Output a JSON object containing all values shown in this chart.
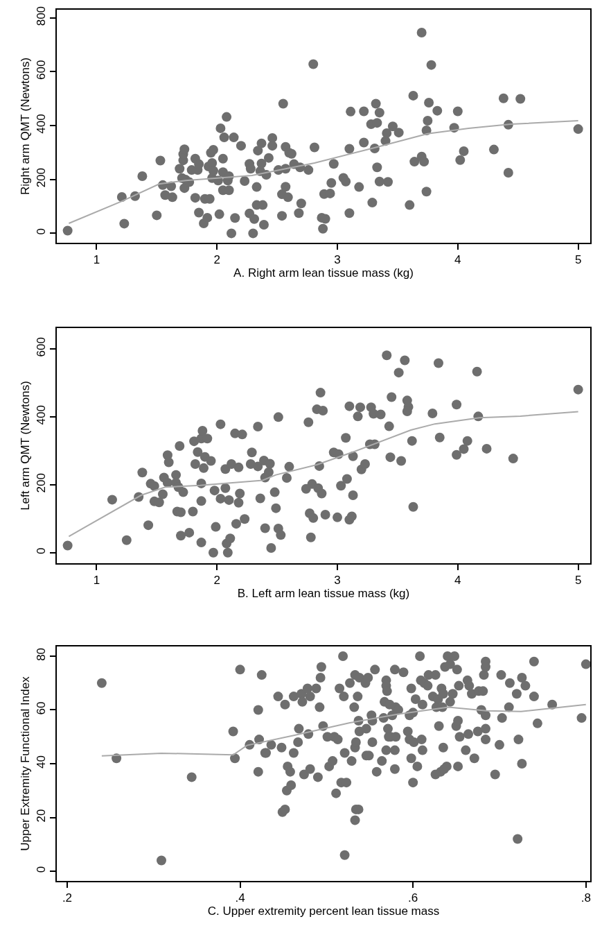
{
  "chart_data": [
    {
      "type": "scatter",
      "xlabel": "A. Right arm lean tissue mass (kg)",
      "ylabel": "Right arm QMT (Newtons)",
      "xlim": [
        0.67,
        5.1
      ],
      "ylim": [
        -35,
        830
      ],
      "xticks": [
        1,
        2,
        3,
        4,
        5
      ],
      "yticks": [
        0,
        200,
        400,
        600,
        800
      ],
      "marker": "circle",
      "series": [
        {
          "color": "#6e6e6e",
          "x": [
            0.76,
            1.21,
            1.32,
            1.23,
            1.38,
            1.5,
            1.53,
            1.55,
            1.57,
            1.62,
            1.63,
            1.69,
            1.71,
            1.72,
            1.72,
            1.73,
            1.73,
            1.74,
            1.77,
            1.79,
            1.82,
            1.82,
            1.84,
            1.85,
            1.85,
            1.89,
            1.9,
            1.92,
            1.94,
            1.93,
            1.95,
            1.96,
            1.96,
            1.97,
            1.97,
            2.01,
            2.02,
            2.03,
            2.05,
            2.05,
            2.05,
            2.06,
            2.08,
            2.09,
            2.1,
            2.1,
            2.12,
            2.14,
            2.15,
            2.2,
            2.23,
            2.27,
            2.27,
            2.28,
            2.3,
            2.31,
            2.33,
            2.33,
            2.34,
            2.36,
            2.37,
            2.37,
            2.38,
            2.39,
            2.41,
            2.43,
            2.46,
            2.46,
            2.51,
            2.54,
            2.54,
            2.55,
            2.57,
            2.57,
            2.57,
            2.59,
            2.6,
            2.62,
            2.64,
            2.68,
            2.69,
            2.7,
            2.76,
            2.8,
            2.81,
            2.87,
            2.89,
            2.9,
            2.88,
            2.94,
            2.95,
            2.97,
            3.05,
            3.07,
            3.1,
            3.1,
            3.11,
            3.18,
            3.22,
            3.22,
            3.29,
            3.28,
            3.31,
            3.32,
            3.33,
            3.33,
            3.35,
            3.35,
            3.4,
            3.41,
            3.42,
            3.46,
            3.51,
            3.6,
            3.63,
            3.64,
            3.7,
            3.7,
            3.72,
            3.74,
            3.74,
            3.75,
            3.76,
            3.78,
            3.83,
            3.97,
            4.0,
            4.02,
            4.05,
            4.3,
            4.38,
            4.42,
            4.42,
            4.52,
            5.0
          ],
          "values": [
            10,
            135,
            138,
            36,
            212,
            67,
            270,
            179,
            142,
            175,
            134,
            240,
            205,
            271,
            294,
            312,
            168,
            199,
            190,
            235,
            277,
            132,
            235,
            257,
            77,
            37,
            128,
            58,
            128,
            248,
            299,
            261,
            205,
            310,
            232,
            196,
            71,
            390,
            277,
            227,
            160,
            356,
            432,
            196,
            160,
            212,
            0,
            356,
            57,
            325,
            194,
            258,
            74,
            240,
            0,
            53,
            172,
            105,
            307,
            231,
            334,
            259,
            105,
            32,
            217,
            280,
            354,
            325,
            235,
            145,
            65,
            481,
            240,
            321,
            173,
            134,
            299,
            295,
            257,
            75,
            245,
            111,
            235,
            628,
            319,
            58,
            146,
            54,
            17,
            148,
            187,
            258,
            206,
            192,
            314,
            75,
            452,
            172,
            453,
            337,
            114,
            405,
            315,
            481,
            245,
            410,
            448,
            192,
            343,
            372,
            191,
            397,
            374,
            105,
            511,
            266,
            285,
            745,
            266,
            155,
            382,
            418,
            485,
            625,
            455,
            392,
            453,
            272,
            305,
            311,
            501,
            225,
            403,
            499,
            387
          ]
        },
        {
          "type": "line",
          "marker": "none",
          "color": "#aaaaaa",
          "x": [
            0.77,
            1.21,
            1.52,
            1.74,
            2.29,
            2.81,
            3.32,
            3.75,
            4.09,
            4.44,
            5.0
          ],
          "values": [
            37,
            119,
            183,
            196,
            215,
            261,
            319,
            370,
            390,
            405,
            418
          ]
        }
      ]
    },
    {
      "type": "scatter",
      "xlabel": "B. Left arm lean tissue mass (kg)",
      "ylabel": "Left arm QMT (Newtons)",
      "xlim": [
        0.67,
        5.1
      ],
      "ylim": [
        -31,
        661
      ],
      "xticks": [
        1,
        2,
        3,
        4,
        5
      ],
      "yticks": [
        0,
        200,
        400,
        600
      ],
      "marker": "circle",
      "series": [
        {
          "color": "#6e6e6e",
          "x": [
            0.76,
            1.13,
            1.25,
            1.35,
            1.38,
            1.43,
            1.45,
            1.48,
            1.48,
            1.52,
            1.55,
            1.56,
            1.59,
            1.59,
            1.6,
            1.66,
            1.66,
            1.68,
            1.67,
            1.7,
            1.69,
            1.7,
            1.72,
            1.77,
            1.8,
            1.81,
            1.82,
            1.84,
            1.87,
            1.87,
            1.87,
            1.88,
            1.87,
            1.89,
            1.9,
            1.92,
            1.95,
            1.97,
            1.98,
            1.99,
            2.03,
            2.03,
            2.07,
            2.07,
            2.09,
            2.08,
            2.11,
            2.1,
            2.12,
            2.15,
            2.16,
            2.18,
            2.18,
            2.19,
            2.21,
            2.23,
            2.28,
            2.29,
            2.34,
            2.34,
            2.36,
            2.39,
            2.4,
            2.4,
            2.43,
            2.44,
            2.45,
            2.48,
            2.49,
            2.51,
            2.51,
            2.53,
            2.58,
            2.6,
            2.74,
            2.76,
            2.77,
            2.78,
            2.79,
            2.8,
            2.83,
            2.84,
            2.86,
            2.85,
            2.87,
            2.88,
            2.9,
            2.97,
            3.0,
            3.01,
            3.03,
            3.07,
            3.08,
            3.1,
            3.1,
            3.12,
            3.13,
            3.13,
            3.17,
            3.19,
            3.2,
            3.23,
            3.27,
            3.28,
            3.3,
            3.31,
            3.36,
            3.41,
            3.43,
            3.44,
            3.45,
            3.51,
            3.53,
            3.56,
            3.58,
            3.59,
            3.58,
            3.62,
            3.63,
            3.79,
            3.84,
            3.85,
            3.99,
            3.99,
            4.05,
            4.08,
            4.16,
            4.17,
            4.24,
            4.46,
            5.0
          ],
          "values": [
            21,
            156,
            37,
            164,
            236,
            81,
            203,
            196,
            151,
            148,
            172,
            221,
            206,
            287,
            266,
            229,
            206,
            193,
            121,
            119,
            314,
            50,
            178,
            59,
            121,
            328,
            261,
            296,
            336,
            204,
            152,
            359,
            30,
            249,
            282,
            336,
            270,
            0,
            183,
            76,
            159,
            378,
            246,
            190,
            0,
            27,
            42,
            155,
            261,
            351,
            85,
            251,
            147,
            174,
            348,
            99,
            261,
            295,
            371,
            254,
            160,
            271,
            72,
            221,
            237,
            262,
            14,
            178,
            131,
            399,
            71,
            52,
            220,
            253,
            188,
            384,
            116,
            45,
            202,
            102,
            422,
            190,
            471,
            255,
            174,
            418,
            112,
            295,
            104,
            290,
            197,
            338,
            217,
            431,
            97,
            107,
            284,
            169,
            401,
            428,
            245,
            261,
            319,
            428,
            409,
            319,
            407,
            581,
            372,
            281,
            458,
            530,
            270,
            566,
            448,
            429,
            416,
            329,
            135,
            410,
            558,
            339,
            288,
            436,
            305,
            329,
            533,
            401,
            306,
            277,
            480
          ]
        },
        {
          "type": "line",
          "marker": "none",
          "color": "#aaaaaa",
          "x": [
            0.77,
            1.37,
            1.57,
            1.86,
            2.38,
            2.49,
            2.83,
            3.12,
            3.61,
            3.81,
            4.18,
            4.52,
            5.0
          ],
          "values": [
            48,
            169,
            193,
            198,
            213,
            229,
            259,
            295,
            361,
            379,
            397,
            402,
            415
          ]
        }
      ]
    },
    {
      "type": "scatter",
      "xlabel": "C. Upper extremity percent lean tissue mass",
      "ylabel": "Upper Extremity Functional Index",
      "xlim": [
        0.188,
        0.805
      ],
      "ylim": [
        -3.6,
        83.6
      ],
      "xticks": [
        {
          "value": 0.2,
          "label": ".2"
        },
        {
          "value": 0.4,
          "label": ".4"
        },
        {
          "value": 0.6,
          "label": ".6"
        },
        {
          "value": 0.8,
          "label": ".8"
        }
      ],
      "yticks": [
        0,
        20,
        40,
        60,
        80
      ],
      "marker": "circle",
      "series": [
        {
          "color": "#6e6e6e",
          "x": [
            0.24,
            0.257,
            0.309,
            0.344,
            0.392,
            0.394,
            0.4,
            0.411,
            0.421,
            0.422,
            0.421,
            0.425,
            0.429,
            0.43,
            0.436,
            0.444,
            0.448,
            0.449,
            0.452,
            0.452,
            0.454,
            0.455,
            0.458,
            0.459,
            0.462,
            0.462,
            0.467,
            0.468,
            0.471,
            0.472,
            0.474,
            0.478,
            0.479,
            0.481,
            0.481,
            0.488,
            0.49,
            0.492,
            0.493,
            0.494,
            0.496,
            0.501,
            0.503,
            0.507,
            0.509,
            0.511,
            0.513,
            0.515,
            0.517,
            0.519,
            0.52,
            0.521,
            0.521,
            0.523,
            0.527,
            0.529,
            0.532,
            0.533,
            0.533,
            0.534,
            0.534,
            0.533,
            0.536,
            0.537,
            0.537,
            0.538,
            0.538,
            0.546,
            0.545,
            0.546,
            0.548,
            0.549,
            0.552,
            0.553,
            0.553,
            0.556,
            0.558,
            0.564,
            0.566,
            0.567,
            0.569,
            0.569,
            0.57,
            0.571,
            0.569,
            0.572,
            0.573,
            0.574,
            0.576,
            0.579,
            0.579,
            0.579,
            0.58,
            0.58,
            0.583,
            0.589,
            0.594,
            0.596,
            0.596,
            0.598,
            0.598,
            0.6,
            0.6,
            0.601,
            0.603,
            0.605,
            0.608,
            0.609,
            0.61,
            0.611,
            0.611,
            0.613,
            0.617,
            0.618,
            0.623,
            0.626,
            0.626,
            0.627,
            0.629,
            0.63,
            0.632,
            0.634,
            0.633,
            0.635,
            0.635,
            0.636,
            0.637,
            0.639,
            0.64,
            0.643,
            0.643,
            0.646,
            0.648,
            0.65,
            0.652,
            0.652,
            0.653,
            0.654,
            0.651,
            0.661,
            0.663,
            0.664,
            0.665,
            0.668,
            0.671,
            0.675,
            0.676,
            0.679,
            0.681,
            0.682,
            0.684,
            0.684,
            0.684,
            0.684,
            0.684,
            0.695,
            0.7,
            0.702,
            0.703,
            0.711,
            0.712,
            0.72,
            0.721,
            0.722,
            0.726,
            0.726,
            0.73,
            0.74,
            0.74,
            0.744,
            0.761,
            0.795,
            0.8
          ],
          "values": [
            70,
            42,
            4,
            35,
            52,
            42,
            75,
            47,
            37,
            49,
            60,
            73,
            44,
            44,
            47,
            65,
            46,
            22,
            23,
            62,
            30,
            39,
            37,
            32,
            44,
            65,
            48,
            53,
            66,
            63,
            36,
            68,
            51,
            38,
            65,
            68,
            35,
            61,
            72,
            76,
            54,
            50,
            39,
            41,
            50,
            29,
            49,
            68,
            33,
            80,
            65,
            44,
            6,
            33,
            70,
            41,
            61,
            46,
            73,
            48,
            23,
            19,
            65,
            23,
            56,
            72,
            52,
            53,
            70,
            43,
            72,
            43,
            58,
            48,
            56,
            75,
            37,
            41,
            57,
            63,
            71,
            69,
            67,
            53,
            45,
            50,
            62,
            50,
            58,
            38,
            45,
            75,
            50,
            61,
            60,
            74,
            52,
            49,
            58,
            42,
            68,
            59,
            33,
            48,
            64,
            39,
            80,
            71,
            49,
            45,
            62,
            70,
            69,
            73,
            65,
            36,
            73,
            61,
            64,
            54,
            37,
            61,
            68,
            66,
            46,
            38,
            76,
            39,
            80,
            77,
            63,
            66,
            80,
            54,
            39,
            56,
            69,
            50,
            75,
            45,
            71,
            51,
            69,
            66,
            42,
            52,
            67,
            60,
            67,
            73,
            49,
            78,
            76,
            58,
            53,
            36,
            47,
            73,
            57,
            61,
            70,
            66,
            12,
            49,
            72,
            40,
            69,
            65,
            78,
            55,
            62,
            57,
            77
          ]
        },
        {
          "type": "line",
          "marker": "none",
          "color": "#aaaaaa",
          "x": [
            0.24,
            0.309,
            0.392,
            0.408,
            0.463,
            0.527,
            0.582,
            0.641,
            0.685,
            0.725,
            0.8
          ],
          "values": [
            42.9,
            43.9,
            43.3,
            46.8,
            50.6,
            55.2,
            58.4,
            61.0,
            59.7,
            59.4,
            62.0
          ]
        }
      ]
    }
  ]
}
